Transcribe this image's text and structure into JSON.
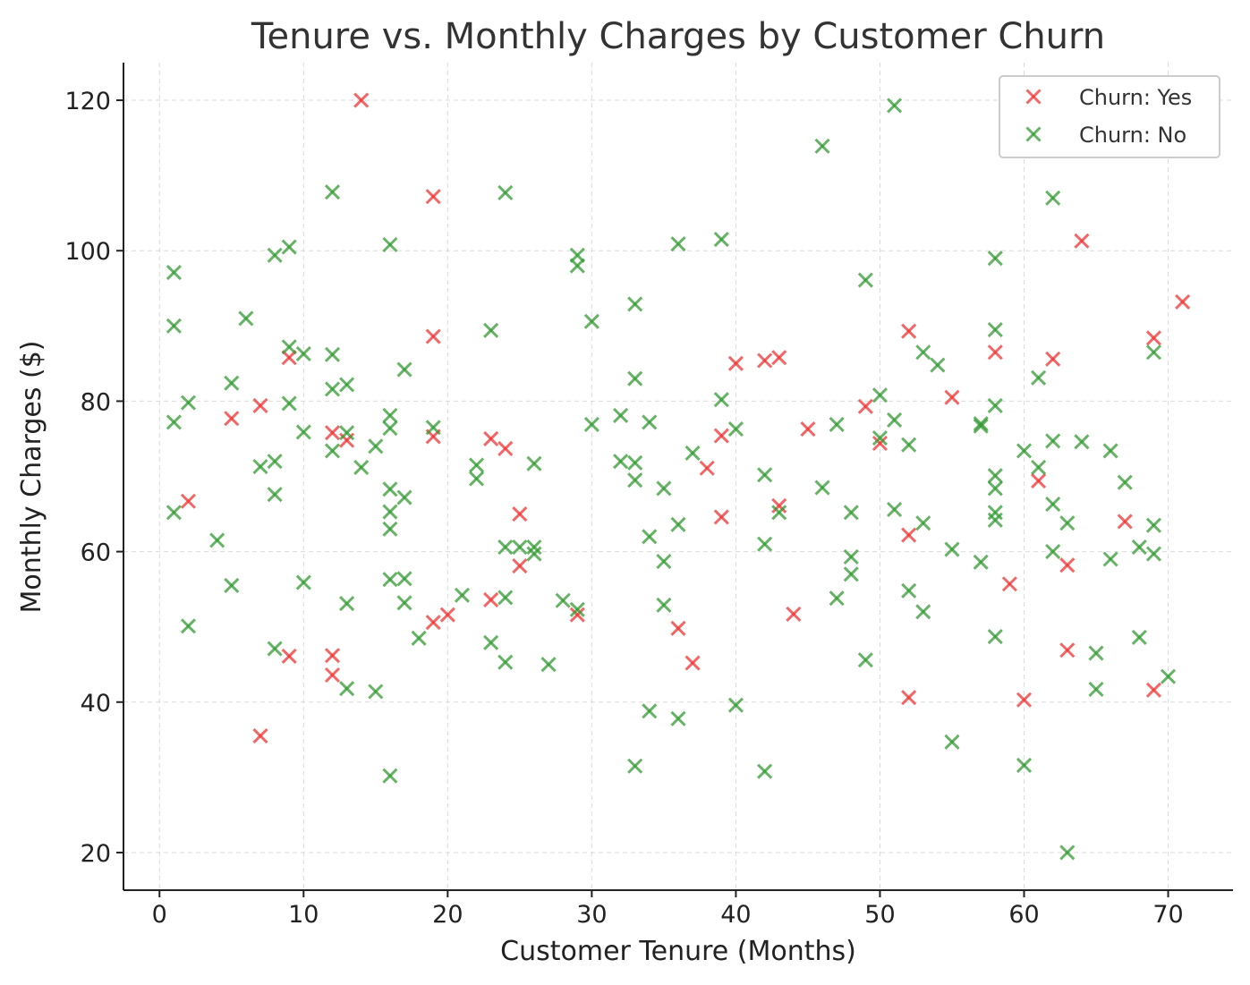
{
  "chart_data": {
    "type": "scatter",
    "title": "Tenure vs. Monthly Charges by Customer Churn",
    "xlabel": "Customer Tenure (Months)",
    "ylabel": "Monthly Charges ($)",
    "xlim": [
      -2.5,
      74.5
    ],
    "ylim": [
      15,
      125
    ],
    "xticks": [
      0,
      10,
      20,
      30,
      40,
      50,
      60,
      70
    ],
    "yticks": [
      20,
      40,
      60,
      80,
      100,
      120
    ],
    "grid": true,
    "legend_position": "top-right",
    "marker": "x",
    "series": [
      {
        "name": "Churn: Yes",
        "color": "#ee3333",
        "points": [
          [
            14,
            120
          ],
          [
            19,
            107.2
          ],
          [
            64,
            101.3
          ],
          [
            71,
            93.2
          ],
          [
            19,
            88.6
          ],
          [
            52,
            89.3
          ],
          [
            69,
            88.4
          ],
          [
            9,
            85.8
          ],
          [
            58,
            86.5
          ],
          [
            62,
            85.6
          ],
          [
            40,
            85
          ],
          [
            42,
            85.4
          ],
          [
            43,
            85.8
          ],
          [
            55,
            80.5
          ],
          [
            49,
            79.3
          ],
          [
            7,
            79.4
          ],
          [
            5,
            77.7
          ],
          [
            45,
            76.3
          ],
          [
            12,
            75.8
          ],
          [
            13,
            74.8
          ],
          [
            19,
            75.3
          ],
          [
            23,
            75
          ],
          [
            39,
            75.4
          ],
          [
            50,
            74.4
          ],
          [
            24,
            73.7
          ],
          [
            38,
            71.1
          ],
          [
            61,
            69.4
          ],
          [
            2,
            66.7
          ],
          [
            43,
            66.1
          ],
          [
            25,
            65
          ],
          [
            39,
            64.6
          ],
          [
            67,
            64
          ],
          [
            52,
            62.2
          ],
          [
            63,
            58.2
          ],
          [
            25,
            58.1
          ],
          [
            59,
            55.7
          ],
          [
            23,
            53.6
          ],
          [
            20,
            51.6
          ],
          [
            29,
            51.6
          ],
          [
            44,
            51.7
          ],
          [
            19,
            50.6
          ],
          [
            36,
            49.8
          ],
          [
            63,
            46.9
          ],
          [
            12,
            46.2
          ],
          [
            9,
            46.1
          ],
          [
            37,
            45.2
          ],
          [
            12,
            43.6
          ],
          [
            69,
            41.6
          ],
          [
            52,
            40.6
          ],
          [
            60,
            40.3
          ],
          [
            7,
            35.5
          ]
        ]
      },
      {
        "name": "Churn: No",
        "color": "#339933",
        "points": [
          [
            51,
            119.3
          ],
          [
            46,
            113.9
          ],
          [
            12,
            107.8
          ],
          [
            24,
            107.7
          ],
          [
            62,
            107
          ],
          [
            39,
            101.5
          ],
          [
            9,
            100.5
          ],
          [
            16,
            100.8
          ],
          [
            36,
            100.9
          ],
          [
            8,
            99.4
          ],
          [
            29,
            99.4
          ],
          [
            58,
            99
          ],
          [
            29,
            98
          ],
          [
            1,
            97.1
          ],
          [
            49,
            96.1
          ],
          [
            30,
            90.6
          ],
          [
            33,
            92.9
          ],
          [
            6,
            91
          ],
          [
            1,
            90
          ],
          [
            23,
            89.4
          ],
          [
            58,
            89.5
          ],
          [
            9,
            87.2
          ],
          [
            10,
            86.3
          ],
          [
            12,
            86.2
          ],
          [
            53,
            86.5
          ],
          [
            69,
            86.5
          ],
          [
            54,
            84.8
          ],
          [
            17,
            84.2
          ],
          [
            33,
            83
          ],
          [
            61,
            83.1
          ],
          [
            5,
            82.4
          ],
          [
            13,
            82.2
          ],
          [
            12,
            81.6
          ],
          [
            50,
            80.8
          ],
          [
            39,
            80.2
          ],
          [
            2,
            79.8
          ],
          [
            9,
            79.7
          ],
          [
            58,
            79.4
          ],
          [
            16,
            78.1
          ],
          [
            32,
            78.1
          ],
          [
            51,
            77.5
          ],
          [
            1,
            77.2
          ],
          [
            34,
            77.2
          ],
          [
            57,
            77
          ],
          [
            57,
            76.7
          ],
          [
            47,
            76.9
          ],
          [
            30,
            76.9
          ],
          [
            16,
            76.4
          ],
          [
            19,
            76.5
          ],
          [
            40,
            76.3
          ],
          [
            10,
            75.9
          ],
          [
            13,
            75.8
          ],
          [
            50,
            75.1
          ],
          [
            62,
            74.7
          ],
          [
            64,
            74.6
          ],
          [
            52,
            74.2
          ],
          [
            15,
            74
          ],
          [
            12,
            73.4
          ],
          [
            60,
            73.4
          ],
          [
            66,
            73.4
          ],
          [
            37,
            73.1
          ],
          [
            8,
            72
          ],
          [
            32,
            72
          ],
          [
            33,
            71.8
          ],
          [
            26,
            71.7
          ],
          [
            22,
            71.5
          ],
          [
            7,
            71.3
          ],
          [
            14,
            71.2
          ],
          [
            61,
            71.2
          ],
          [
            42,
            70.2
          ],
          [
            58,
            70.1
          ],
          [
            22,
            69.7
          ],
          [
            33,
            69.5
          ],
          [
            67,
            69.2
          ],
          [
            58,
            68.4
          ],
          [
            35,
            68.4
          ],
          [
            46,
            68.5
          ],
          [
            16,
            68.3
          ],
          [
            8,
            67.6
          ],
          [
            17,
            67.2
          ],
          [
            62,
            66.3
          ],
          [
            51,
            65.6
          ],
          [
            16,
            65.3
          ],
          [
            58,
            65.2
          ],
          [
            43,
            65.2
          ],
          [
            1,
            65.2
          ],
          [
            48,
            65.2
          ],
          [
            58,
            64.2
          ],
          [
            53,
            63.8
          ],
          [
            63,
            63.8
          ],
          [
            36,
            63.6
          ],
          [
            16,
            63
          ],
          [
            69,
            63.5
          ],
          [
            34,
            62
          ],
          [
            4,
            61.5
          ],
          [
            42,
            61
          ],
          [
            24,
            60.6
          ],
          [
            26,
            60.6
          ],
          [
            25,
            60.6
          ],
          [
            55,
            60.3
          ],
          [
            68,
            60.6
          ],
          [
            62,
            60
          ],
          [
            26,
            59.7
          ],
          [
            69,
            59.7
          ],
          [
            48,
            59.3
          ],
          [
            66,
            59
          ],
          [
            35,
            58.7
          ],
          [
            57,
            58.6
          ],
          [
            48,
            57
          ],
          [
            16,
            56.3
          ],
          [
            17,
            56.4
          ],
          [
            10,
            55.9
          ],
          [
            5,
            55.5
          ],
          [
            52,
            54.8
          ],
          [
            21,
            54.2
          ],
          [
            24,
            53.9
          ],
          [
            47,
            53.8
          ],
          [
            28,
            53.5
          ],
          [
            13,
            53.1
          ],
          [
            17,
            53.2
          ],
          [
            35,
            52.9
          ],
          [
            29,
            52.3
          ],
          [
            53,
            52
          ],
          [
            2,
            50.1
          ],
          [
            18,
            48.5
          ],
          [
            58,
            48.7
          ],
          [
            68,
            48.6
          ],
          [
            23,
            47.9
          ],
          [
            8,
            47.1
          ],
          [
            65,
            46.5
          ],
          [
            24,
            45.3
          ],
          [
            49,
            45.6
          ],
          [
            27,
            45
          ],
          [
            70,
            43.4
          ],
          [
            13,
            41.8
          ],
          [
            65,
            41.7
          ],
          [
            15,
            41.4
          ],
          [
            40,
            39.6
          ],
          [
            34,
            38.8
          ],
          [
            36,
            37.8
          ],
          [
            55,
            34.7
          ],
          [
            60,
            31.6
          ],
          [
            33,
            31.5
          ],
          [
            42,
            30.8
          ],
          [
            16,
            30.2
          ],
          [
            63,
            20
          ]
        ]
      }
    ]
  }
}
